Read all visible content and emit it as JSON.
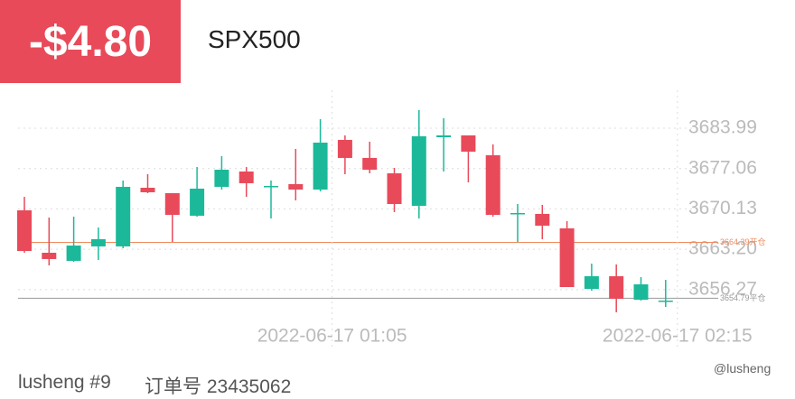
{
  "header": {
    "pnl": "-$4.80",
    "symbol": "SPX500"
  },
  "footer": {
    "account": "lusheng #9",
    "order": "订单号 23435062",
    "watermark": "@lusheng"
  },
  "chart_data": {
    "type": "candlestick",
    "categories": [
      null,
      null,
      null,
      null,
      null,
      null,
      null,
      null,
      null,
      null,
      null,
      null,
      "2022-06-17 01:05",
      null,
      null,
      null,
      null,
      null,
      null,
      null,
      null,
      null,
      null,
      null,
      null,
      null,
      "2022-06-17 02:15"
    ],
    "open": [
      3669.89,
      3662.6,
      3661.21,
      3663.69,
      3663.69,
      3673.76,
      3672.83,
      3668.96,
      3673.92,
      3676.55,
      3673.92,
      3674.38,
      3673.45,
      3681.98,
      3678.88,
      3676.24,
      3670.66,
      3682.44,
      3682.75,
      3679.34,
      3669.27,
      3669.27,
      3666.79,
      3656.4,
      3658.57,
      3654.54,
      3654.39
    ],
    "high": [
      3672.21,
      3668.65,
      3668.8,
      3666.94,
      3675.0,
      3676.09,
      3672.83,
      3677.33,
      3679.19,
      3677.33,
      3675.0,
      3680.43,
      3685.54,
      3682.75,
      3681.67,
      3677.17,
      3687.09,
      3685.7,
      3682.75,
      3681.2,
      3670.97,
      3670.82,
      3668.03,
      3660.74,
      3660.59,
      3658.42,
      3657.95
    ],
    "low": [
      3662.6,
      3660.43,
      3661.05,
      3661.36,
      3663.38,
      3672.83,
      3664.46,
      3668.8,
      3673.45,
      3672.21,
      3668.49,
      3671.59,
      3673.14,
      3676.09,
      3676.24,
      3669.58,
      3668.49,
      3676.55,
      3674.69,
      3668.8,
      3664.46,
      3664.93,
      3656.71,
      3656.09,
      3652.37,
      3654.39,
      3653.3
    ],
    "close": [
      3662.91,
      3661.52,
      3663.84,
      3664.93,
      3673.92,
      3672.99,
      3669.11,
      3673.61,
      3676.86,
      3674.54,
      3674.07,
      3673.45,
      3681.51,
      3678.88,
      3676.86,
      3670.97,
      3682.6,
      3682.75,
      3679.96,
      3669.11,
      3669.42,
      3667.25,
      3656.71,
      3658.57,
      3654.7,
      3657.18,
      3654.39
    ],
    "up_color": "#1bb99a",
    "down_color": "#e84a5a",
    "ylim": [
      3651.75,
      3690.5
    ],
    "yticks": [
      3656.27,
      {
        "value": 3663.2,
        "label": "3663.20"
      },
      3670.13,
      3677.06,
      3683.99
    ],
    "grid": true,
    "lines": [
      {
        "value": 3664.39,
        "label": "3664.39开仓",
        "color": "#f08a5d"
      },
      {
        "value": 3654.79,
        "label": "3654.79平仓",
        "color": "#999999"
      }
    ]
  }
}
